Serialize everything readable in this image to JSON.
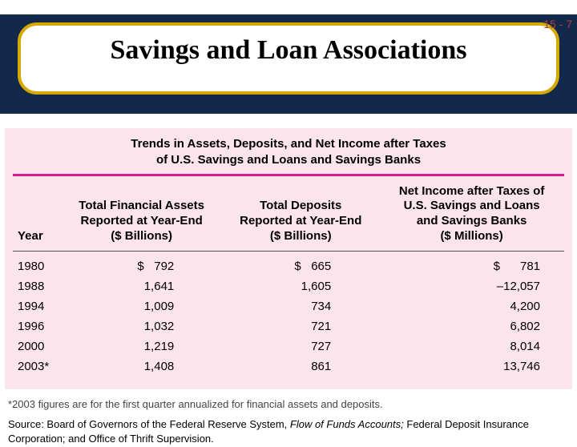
{
  "page_number": "15 - 7",
  "slide_title": "Savings and Loan Associations",
  "colors": {
    "header_band": "#13294b",
    "bubble_border": "#d6a900",
    "table_bg": "#fce4ec",
    "rule": "#d81b8c",
    "page_num_color": "#b04040"
  },
  "table": {
    "title_line1": "Trends in Assets, Deposits, and Net Income after Taxes",
    "title_line2": "of U.S. Savings and Loans and Savings Banks",
    "columns": {
      "year": "Year",
      "c1_l1": "Total Financial Assets",
      "c1_l2": "Reported at Year-End",
      "c1_l3": "($ Billions)",
      "c2_l1": "Total Deposits",
      "c2_l2": "Reported at Year-End",
      "c2_l3": "($ Billions)",
      "c3_l1": "Net Income after Taxes of",
      "c3_l2": "U.S. Savings and Loans",
      "c3_l3": "and Savings Banks",
      "c3_l4": "($ Millions)"
    },
    "rows": [
      {
        "year": "1980",
        "assets": "$   792",
        "deposits": "$   665",
        "netincome": "$      781"
      },
      {
        "year": "1988",
        "assets": "1,641",
        "deposits": "1,605",
        "netincome": "–12,057"
      },
      {
        "year": "1994",
        "assets": "1,009",
        "deposits": "734",
        "netincome": "4,200"
      },
      {
        "year": "1996",
        "assets": "1,032",
        "deposits": "721",
        "netincome": "6,802"
      },
      {
        "year": "2000",
        "assets": "1,219",
        "deposits": "727",
        "netincome": "8,014"
      },
      {
        "year": "2003*",
        "assets": "1,408",
        "deposits": "861",
        "netincome": "13,746"
      }
    ]
  },
  "footnote": "*2003 figures are for the first quarter annualized for financial assets and deposits.",
  "source_prefix": "Source: Board of Governors of the Federal Reserve System, ",
  "source_italic": "Flow of Funds Accounts; ",
  "source_suffix": "Federal Deposit Insurance Corporation; and Office of Thrift Supervision."
}
